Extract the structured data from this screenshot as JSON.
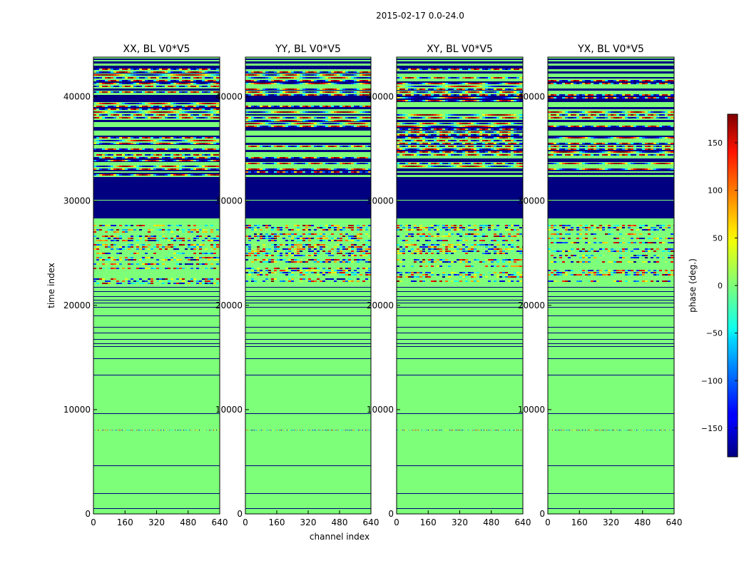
{
  "suptitle": "2015-02-17 0.0-24.0",
  "chart_data": {
    "type": "heatmap",
    "xlabel": "channel index",
    "ylabel": "time index",
    "xlim": [
      0,
      640
    ],
    "ylim": [
      0,
      43800
    ],
    "x_ticks": [
      "0",
      "160",
      "320",
      "480",
      "640"
    ],
    "x_tick_values": [
      0,
      160,
      320,
      480,
      640
    ],
    "y_ticks": [
      "0",
      "10000",
      "20000",
      "30000",
      "40000"
    ],
    "y_tick_values": [
      0,
      10000,
      20000,
      30000,
      40000
    ],
    "colorscale": "jet",
    "panels": [
      {
        "title": "XX, BL V0*V5"
      },
      {
        "title": "YY, BL V0*V5"
      },
      {
        "title": "XY, BL V0*V5"
      },
      {
        "title": "YX, BL V0*V5"
      }
    ],
    "colorbar": {
      "label": "phase (deg.)",
      "range": [
        -180,
        180
      ],
      "ticks": [
        "150",
        "100",
        "50",
        "0",
        "−50",
        "−100",
        "−150"
      ],
      "tick_values": [
        150,
        100,
        50,
        0,
        -50,
        -100,
        -150
      ]
    }
  }
}
